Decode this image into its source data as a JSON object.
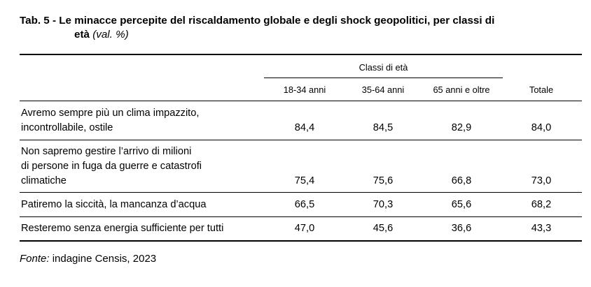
{
  "title": {
    "prefix": "Tab. 5 - Le minacce percepite del riscaldamento globale e degli shock geopolitici, per classi di",
    "line2_bold": "età",
    "unit": "(val. %)"
  },
  "table": {
    "group_header": "Classi di età",
    "columns": [
      "18-34 anni",
      "35-64 anni",
      "65 anni e oltre",
      "Totale"
    ],
    "rows": [
      {
        "label_lines": [
          "Avremo sempre più un clima impazzito,",
          "incontrollabile, ostile"
        ],
        "values": [
          "84,4",
          "84,5",
          "82,9",
          "84,0"
        ]
      },
      {
        "label_lines": [
          "Non sapremo gestire l’arrivo di milioni",
          "di persone in fuga da guerre e catastrofi",
          "climatiche"
        ],
        "values": [
          "75,4",
          "75,6",
          "66,8",
          "73,0"
        ]
      },
      {
        "label_lines": [
          "Patiremo la siccità, la mancanza d’acqua"
        ],
        "values": [
          "66,5",
          "70,3",
          "65,6",
          "68,2"
        ]
      },
      {
        "label_lines": [
          "Resteremo senza energia sufficiente per tutti"
        ],
        "values": [
          "47,0",
          "45,6",
          "36,6",
          "43,3"
        ]
      }
    ]
  },
  "source": {
    "label": "Fonte:",
    "text": " indagine Censis, 2023"
  }
}
